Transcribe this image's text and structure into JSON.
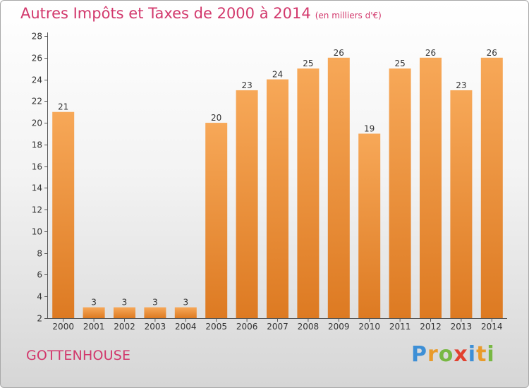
{
  "title": "Autres Impôts et Taxes de 2000 à 2014",
  "unit": "(en milliers d'€)",
  "place": "GOTTENHOUSE",
  "brand": {
    "letters": [
      "P",
      "r",
      "o",
      "x",
      "i",
      "t",
      "i"
    ],
    "colors": [
      "#3d8fd6",
      "#e99b2a",
      "#78b843",
      "#e2412f",
      "#3d8fd6",
      "#e99b2a",
      "#78b843"
    ]
  },
  "colors": {
    "bar_top": "#f7a858",
    "bar_bottom": "#dd7a22",
    "title": "#d2386c"
  },
  "chart_data": {
    "type": "bar",
    "title": "Autres Impôts et Taxes de 2000 à 2014",
    "categories": [
      "2000",
      "2001",
      "2002",
      "2003",
      "2004",
      "2005",
      "2006",
      "2007",
      "2008",
      "2009",
      "2010",
      "2011",
      "2012",
      "2013",
      "2014"
    ],
    "values": [
      21,
      3,
      3,
      3,
      3,
      20,
      23,
      24,
      25,
      26,
      19,
      25,
      26,
      23,
      26
    ],
    "ylim": [
      2,
      28
    ],
    "yticks": [
      2,
      4,
      6,
      8,
      10,
      12,
      14,
      16,
      18,
      20,
      22,
      24,
      26,
      28
    ],
    "grid": false,
    "legend": "none"
  }
}
